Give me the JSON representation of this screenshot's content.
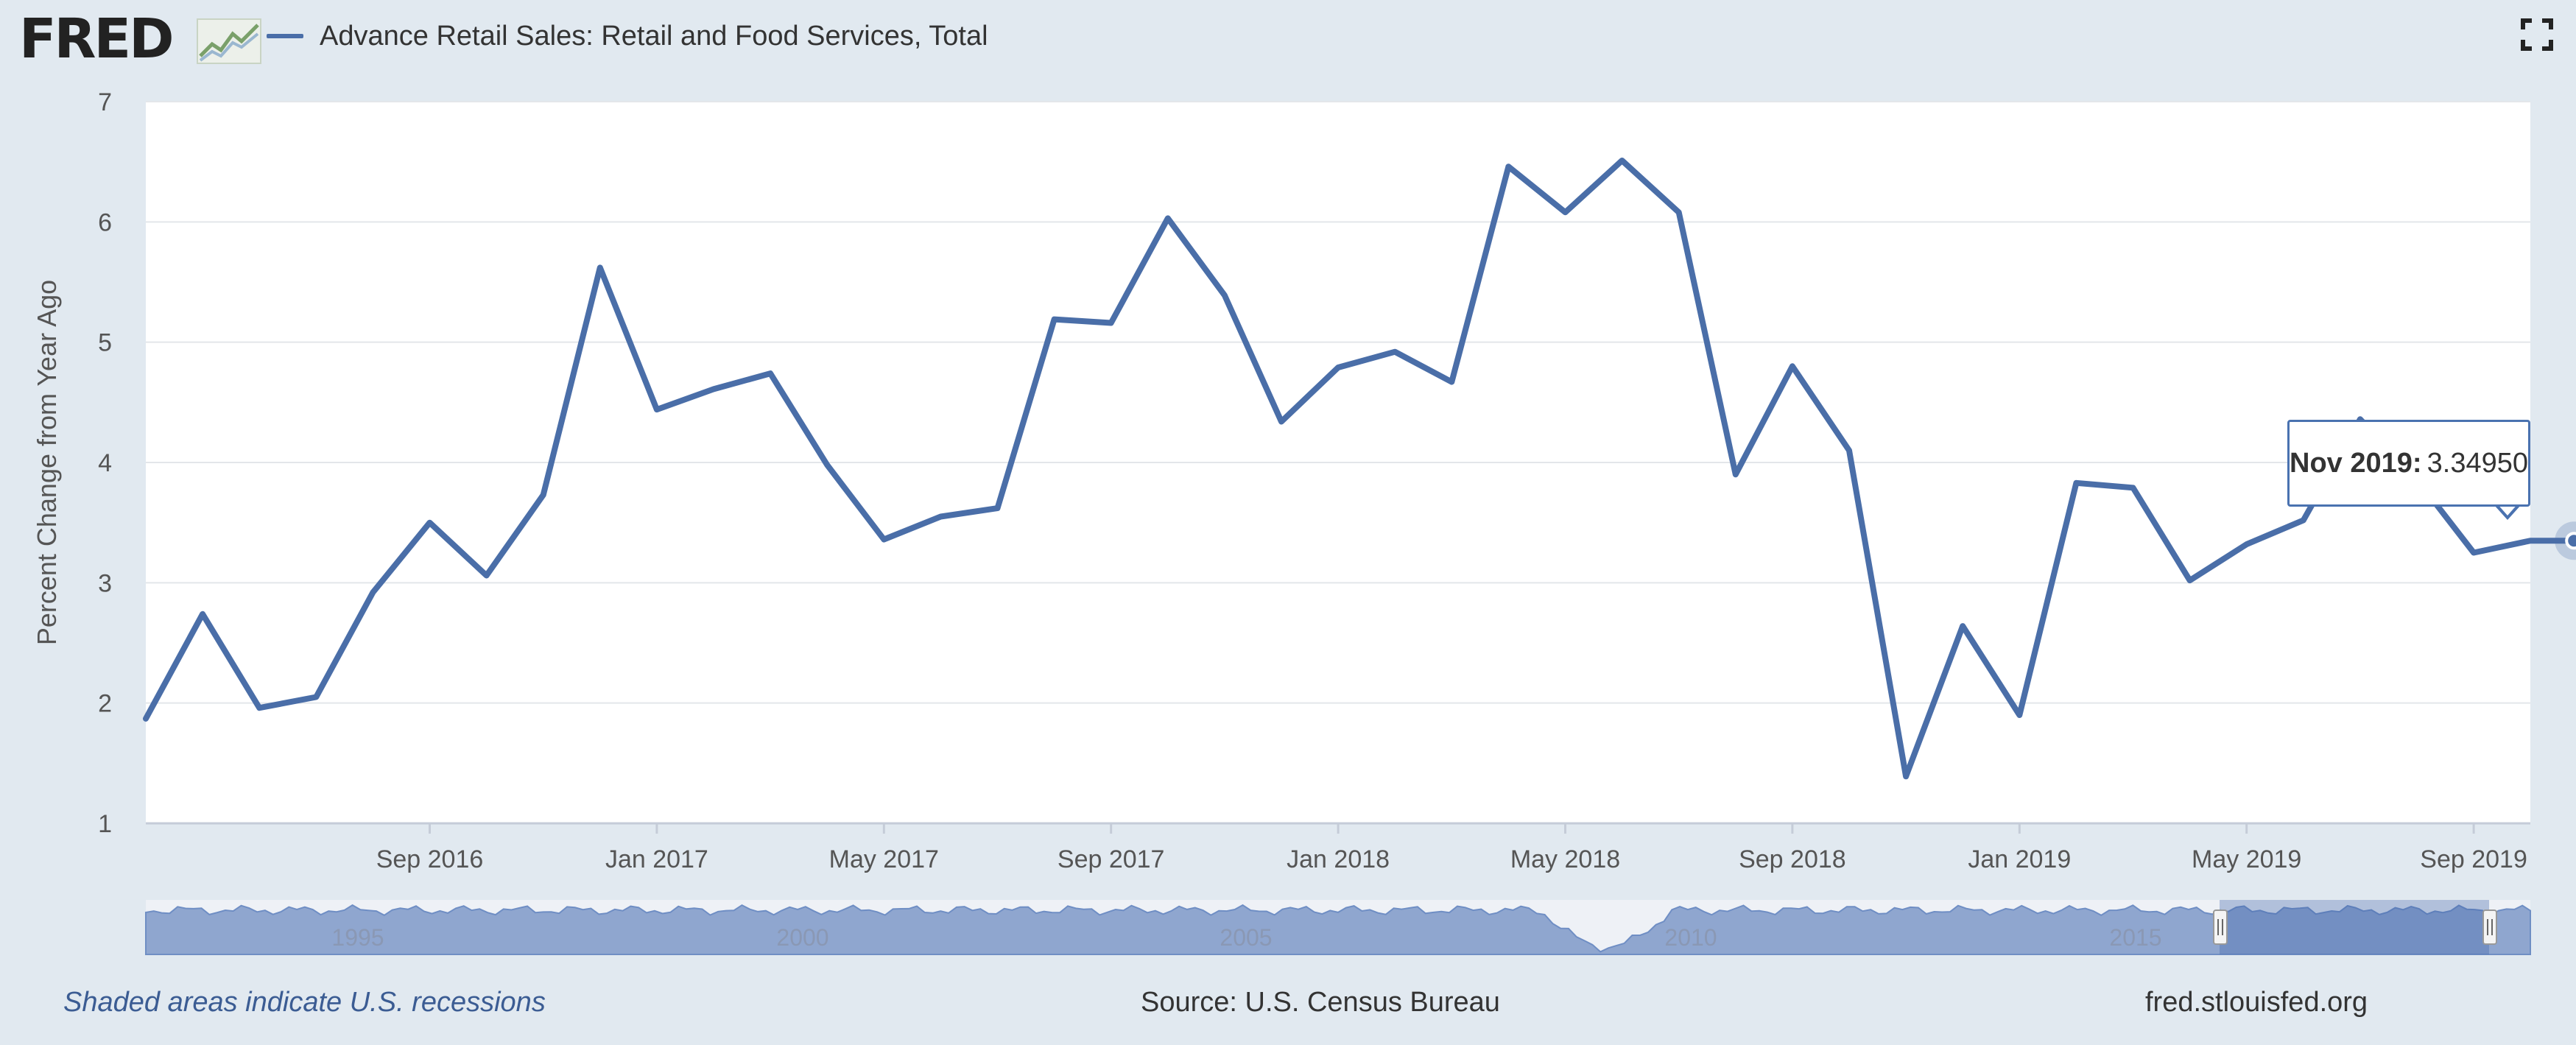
{
  "header": {
    "logo_text": "FRED",
    "legend_label": "Advance Retail Sales: Retail and Food Services, Total",
    "fullscreen_icon": "fullscreen-icon"
  },
  "colors": {
    "series": "#4a6ea8",
    "background": "#e1e9f0",
    "plot": "#ffffff",
    "navigator_fill": "#8fa6cf",
    "navigator_selected": "#3f63a8",
    "footer_link": "#3b5c93"
  },
  "chart_data": {
    "type": "line",
    "title": "",
    "ylabel": "Percent Change from Year Ago",
    "xlabel": "",
    "ylim": [
      1,
      7
    ],
    "yticks": [
      1,
      2,
      3,
      4,
      5,
      6,
      7
    ],
    "xticks": [
      "Sep 2016",
      "Jan 2017",
      "May 2017",
      "Sep 2017",
      "Jan 2018",
      "May 2018",
      "Sep 2018",
      "Jan 2019",
      "May 2019",
      "Sep 2019"
    ],
    "grid": "horizontal",
    "x": [
      "Apr 2016",
      "May 2016",
      "Jun 2016",
      "Jul 2016",
      "Aug 2016",
      "Sep 2016",
      "Oct 2016",
      "Nov 2016",
      "Dec 2016",
      "Jan 2017",
      "Feb 2017",
      "Mar 2017",
      "Apr 2017",
      "May 2017",
      "Jun 2017",
      "Jul 2017",
      "Aug 2017",
      "Sep 2017",
      "Oct 2017",
      "Nov 2017",
      "Dec 2017",
      "Jan 2018",
      "Feb 2018",
      "Mar 2018",
      "Apr 2018",
      "May 2018",
      "Jun 2018",
      "Jul 2018",
      "Aug 2018",
      "Sep 2018",
      "Oct 2018",
      "Nov 2018",
      "Dec 2018",
      "Jan 2019",
      "Feb 2019",
      "Mar 2019",
      "Apr 2019",
      "May 2019",
      "Jun 2019",
      "Jul 2019",
      "Aug 2019",
      "Sep 2019",
      "Oct 2019",
      "Nov 2019"
    ],
    "series": [
      {
        "name": "Advance Retail Sales: Retail and Food Services, Total",
        "values": [
          1.87,
          2.74,
          1.96,
          2.05,
          2.92,
          3.5,
          3.06,
          3.73,
          5.62,
          4.44,
          4.61,
          4.74,
          3.98,
          3.36,
          3.55,
          3.62,
          5.19,
          5.16,
          6.03,
          5.39,
          4.34,
          4.79,
          4.92,
          4.67,
          6.46,
          6.08,
          6.51,
          6.08,
          3.9,
          4.8,
          4.1,
          1.39,
          2.64,
          1.9,
          3.83,
          3.79,
          3.02,
          3.32,
          3.52,
          4.36,
          3.86,
          3.25,
          3.3495,
          3.3495
        ]
      }
    ],
    "tooltip": {
      "date": "Nov 2019:",
      "value": "3.34950"
    },
    "navigator": {
      "labels": [
        "1995",
        "2000",
        "2005",
        "2010",
        "2015"
      ]
    }
  },
  "footer": {
    "recession_note": "Shaded areas indicate U.S. recessions",
    "source": "Source: U.S. Census Bureau",
    "site": "fred.stlouisfed.org"
  }
}
